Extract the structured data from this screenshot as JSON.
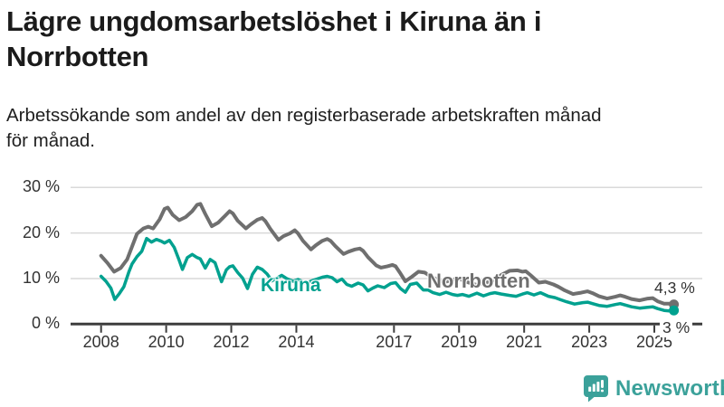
{
  "header": {
    "title_line1": "Lägre ungdomsarbetslöshet i Kiruna än i",
    "title_line2": "Norrbotten",
    "subtitle_line1": "Arbetssökande som andel av den registerbaserade arbetskraften månad",
    "subtitle_line2": "för månad."
  },
  "footer": {
    "brand": "Newsworthy"
  },
  "colors": {
    "kiruna_line": "#00a18f",
    "norrbotten_line": "#6f6f6f",
    "gridline": "#d9d9d9",
    "axis": "#3d3d3d",
    "logo_teal": "#3ba19a"
  },
  "chart_data": {
    "type": "line",
    "title": "Lägre ungdomsarbetslöshet i Kiruna än i Norrbotten",
    "subtitle": "Arbetssökande som andel av den registerbaserade arbetskraften månad för månad.",
    "unit": "%",
    "grid": "horizontal",
    "legend_position": "inline-labels",
    "x_axis": {
      "range": [
        2007.8,
        2026.2
      ],
      "ticks": [
        {
          "year": 2008,
          "label": "2008"
        },
        {
          "year": 2010,
          "label": "2010"
        },
        {
          "year": 2012,
          "label": "2012"
        },
        {
          "year": 2014,
          "label": "2014"
        },
        {
          "year": 2017,
          "label": "2017"
        },
        {
          "year": 2019,
          "label": "2019"
        },
        {
          "year": 2021,
          "label": "2021"
        },
        {
          "year": 2023,
          "label": "2023"
        },
        {
          "year": 2025,
          "label": "2025"
        }
      ]
    },
    "y_axis": {
      "range": [
        0,
        30
      ],
      "ticks": [
        {
          "value": 0,
          "label": "0 %"
        },
        {
          "value": 10,
          "label": "10 %"
        },
        {
          "value": 20,
          "label": "20 %"
        },
        {
          "value": 30,
          "label": "30 %"
        }
      ]
    },
    "series": [
      {
        "name": "Norrbotten",
        "color": "#6f6f6f",
        "end_label": "4,3 %",
        "end_value": 4.3,
        "points": [
          [
            2008.0,
            15.0
          ],
          [
            2008.2,
            13.4
          ],
          [
            2008.4,
            11.5
          ],
          [
            2008.6,
            12.3
          ],
          [
            2008.8,
            14.2
          ],
          [
            2008.95,
            17.0
          ],
          [
            2009.1,
            19.8
          ],
          [
            2009.3,
            21.0
          ],
          [
            2009.45,
            21.4
          ],
          [
            2009.6,
            21.0
          ],
          [
            2009.8,
            23.0
          ],
          [
            2009.95,
            25.3
          ],
          [
            2010.05,
            25.6
          ],
          [
            2010.2,
            24.0
          ],
          [
            2010.4,
            22.8
          ],
          [
            2010.6,
            23.5
          ],
          [
            2010.8,
            24.8
          ],
          [
            2010.95,
            26.2
          ],
          [
            2011.05,
            26.4
          ],
          [
            2011.2,
            24.2
          ],
          [
            2011.4,
            21.5
          ],
          [
            2011.6,
            22.3
          ],
          [
            2011.8,
            23.7
          ],
          [
            2011.95,
            24.8
          ],
          [
            2012.05,
            24.3
          ],
          [
            2012.2,
            22.7
          ],
          [
            2012.45,
            21.0
          ],
          [
            2012.6,
            21.9
          ],
          [
            2012.8,
            22.9
          ],
          [
            2012.95,
            23.3
          ],
          [
            2013.05,
            22.6
          ],
          [
            2013.2,
            20.9
          ],
          [
            2013.45,
            18.5
          ],
          [
            2013.6,
            19.3
          ],
          [
            2013.8,
            19.9
          ],
          [
            2013.95,
            20.6
          ],
          [
            2014.05,
            19.9
          ],
          [
            2014.2,
            18.3
          ],
          [
            2014.45,
            16.4
          ],
          [
            2014.6,
            17.3
          ],
          [
            2014.8,
            18.3
          ],
          [
            2014.95,
            18.7
          ],
          [
            2015.05,
            18.3
          ],
          [
            2015.2,
            17.1
          ],
          [
            2015.45,
            15.4
          ],
          [
            2015.6,
            15.9
          ],
          [
            2015.8,
            16.4
          ],
          [
            2015.95,
            16.6
          ],
          [
            2016.05,
            16.1
          ],
          [
            2016.2,
            14.7
          ],
          [
            2016.45,
            12.9
          ],
          [
            2016.6,
            12.4
          ],
          [
            2016.8,
            12.7
          ],
          [
            2016.95,
            13.0
          ],
          [
            2017.05,
            12.7
          ],
          [
            2017.2,
            11.1
          ],
          [
            2017.35,
            9.4
          ],
          [
            2017.55,
            10.4
          ],
          [
            2017.75,
            11.5
          ],
          [
            2017.95,
            11.3
          ],
          [
            2018.1,
            10.6
          ],
          [
            2018.3,
            9.9
          ],
          [
            2018.55,
            9.2
          ],
          [
            2018.8,
            9.7
          ],
          [
            2018.95,
            10.1
          ],
          [
            2019.1,
            9.7
          ],
          [
            2019.3,
            9.1
          ],
          [
            2019.55,
            8.6
          ],
          [
            2019.8,
            9.0
          ],
          [
            2019.95,
            9.4
          ],
          [
            2020.1,
            9.7
          ],
          [
            2020.3,
            10.8
          ],
          [
            2020.55,
            11.7
          ],
          [
            2020.8,
            11.8
          ],
          [
            2020.95,
            11.5
          ],
          [
            2021.05,
            11.6
          ],
          [
            2021.2,
            10.7
          ],
          [
            2021.45,
            9.1
          ],
          [
            2021.65,
            9.3
          ],
          [
            2021.9,
            8.7
          ],
          [
            2022.05,
            8.2
          ],
          [
            2022.25,
            7.4
          ],
          [
            2022.5,
            6.6
          ],
          [
            2022.75,
            6.9
          ],
          [
            2022.95,
            7.2
          ],
          [
            2023.1,
            6.8
          ],
          [
            2023.3,
            6.1
          ],
          [
            2023.55,
            5.6
          ],
          [
            2023.8,
            6.0
          ],
          [
            2023.95,
            6.3
          ],
          [
            2024.1,
            6.0
          ],
          [
            2024.3,
            5.5
          ],
          [
            2024.55,
            5.2
          ],
          [
            2024.8,
            5.6
          ],
          [
            2024.95,
            5.7
          ],
          [
            2025.1,
            5.0
          ],
          [
            2025.3,
            4.5
          ],
          [
            2025.45,
            4.5
          ],
          [
            2025.6,
            4.3
          ]
        ]
      },
      {
        "name": "Kiruna",
        "color": "#00a18f",
        "end_label": "3 %",
        "end_value": 3.0,
        "points": [
          [
            2008.0,
            10.5
          ],
          [
            2008.15,
            9.4
          ],
          [
            2008.3,
            7.9
          ],
          [
            2008.42,
            5.4
          ],
          [
            2008.55,
            6.6
          ],
          [
            2008.7,
            8.2
          ],
          [
            2008.85,
            11.4
          ],
          [
            2008.95,
            13.2
          ],
          [
            2009.1,
            14.8
          ],
          [
            2009.25,
            16.0
          ],
          [
            2009.4,
            18.8
          ],
          [
            2009.55,
            18.0
          ],
          [
            2009.7,
            18.6
          ],
          [
            2009.85,
            18.2
          ],
          [
            2009.95,
            17.8
          ],
          [
            2010.1,
            18.4
          ],
          [
            2010.25,
            16.8
          ],
          [
            2010.4,
            14.0
          ],
          [
            2010.5,
            12.0
          ],
          [
            2010.65,
            14.6
          ],
          [
            2010.8,
            15.3
          ],
          [
            2010.95,
            14.6
          ],
          [
            2011.05,
            14.3
          ],
          [
            2011.2,
            12.3
          ],
          [
            2011.35,
            14.2
          ],
          [
            2011.5,
            13.5
          ],
          [
            2011.7,
            9.3
          ],
          [
            2011.85,
            11.9
          ],
          [
            2011.95,
            12.6
          ],
          [
            2012.05,
            12.8
          ],
          [
            2012.2,
            11.3
          ],
          [
            2012.35,
            10.1
          ],
          [
            2012.5,
            7.8
          ],
          [
            2012.65,
            10.9
          ],
          [
            2012.8,
            12.5
          ],
          [
            2012.95,
            12.0
          ],
          [
            2013.1,
            11.0
          ],
          [
            2013.25,
            9.5
          ],
          [
            2013.4,
            10.1
          ],
          [
            2013.55,
            10.7
          ],
          [
            2013.7,
            10.0
          ],
          [
            2013.9,
            9.4
          ],
          [
            2014.05,
            9.8
          ],
          [
            2014.3,
            9.0
          ],
          [
            2014.55,
            9.7
          ],
          [
            2014.8,
            10.3
          ],
          [
            2014.95,
            10.5
          ],
          [
            2015.1,
            10.2
          ],
          [
            2015.25,
            9.3
          ],
          [
            2015.4,
            9.9
          ],
          [
            2015.55,
            8.7
          ],
          [
            2015.7,
            8.3
          ],
          [
            2015.9,
            9.0
          ],
          [
            2016.05,
            8.6
          ],
          [
            2016.2,
            7.3
          ],
          [
            2016.35,
            7.9
          ],
          [
            2016.5,
            8.4
          ],
          [
            2016.7,
            8.0
          ],
          [
            2016.9,
            8.9
          ],
          [
            2017.05,
            9.1
          ],
          [
            2017.2,
            7.8
          ],
          [
            2017.35,
            7.0
          ],
          [
            2017.5,
            8.7
          ],
          [
            2017.7,
            9.0
          ],
          [
            2017.9,
            7.5
          ],
          [
            2018.05,
            7.5
          ],
          [
            2018.2,
            6.9
          ],
          [
            2018.4,
            6.5
          ],
          [
            2018.6,
            7.0
          ],
          [
            2018.8,
            6.5
          ],
          [
            2018.95,
            6.3
          ],
          [
            2019.1,
            6.5
          ],
          [
            2019.3,
            6.1
          ],
          [
            2019.55,
            6.8
          ],
          [
            2019.75,
            6.2
          ],
          [
            2019.95,
            6.7
          ],
          [
            2020.1,
            6.9
          ],
          [
            2020.3,
            6.6
          ],
          [
            2020.55,
            6.3
          ],
          [
            2020.75,
            6.1
          ],
          [
            2020.95,
            6.6
          ],
          [
            2021.1,
            6.9
          ],
          [
            2021.3,
            6.4
          ],
          [
            2021.5,
            6.9
          ],
          [
            2021.75,
            6.1
          ],
          [
            2021.95,
            5.8
          ],
          [
            2022.1,
            5.4
          ],
          [
            2022.3,
            4.9
          ],
          [
            2022.55,
            4.4
          ],
          [
            2022.8,
            4.7
          ],
          [
            2022.95,
            4.8
          ],
          [
            2023.1,
            4.5
          ],
          [
            2023.3,
            4.1
          ],
          [
            2023.55,
            3.9
          ],
          [
            2023.8,
            4.3
          ],
          [
            2023.95,
            4.5
          ],
          [
            2024.1,
            4.2
          ],
          [
            2024.3,
            3.8
          ],
          [
            2024.55,
            3.5
          ],
          [
            2024.8,
            3.7
          ],
          [
            2024.95,
            3.8
          ],
          [
            2025.1,
            3.4
          ],
          [
            2025.3,
            3.0
          ],
          [
            2025.45,
            2.9
          ],
          [
            2025.6,
            3.0
          ]
        ]
      }
    ]
  }
}
